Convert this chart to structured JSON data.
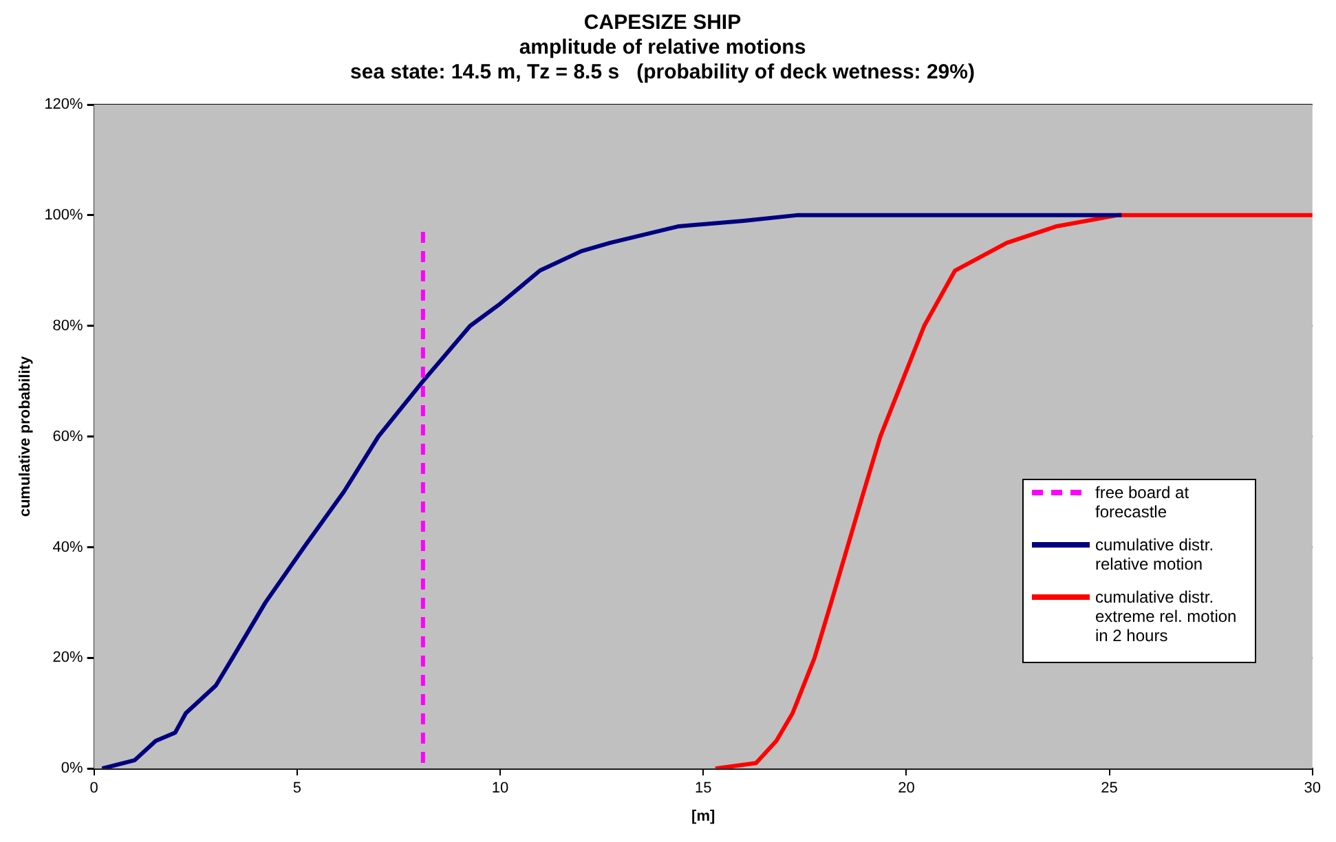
{
  "chart_data": {
    "type": "line",
    "title": "CAPESIZE SHIP\namplitude of relative motions\nsea state: 14.5 m, Tz = 8.5 s   (probability of deck wetness: 29%)",
    "xlabel": "[m]",
    "ylabel": "cumulative probability",
    "xlim": [
      0,
      30
    ],
    "xticks": [
      0,
      5,
      10,
      15,
      20,
      25,
      30
    ],
    "ylim": [
      0,
      120
    ],
    "yticks": [
      {
        "value": 0,
        "label": "0%"
      },
      {
        "value": 20,
        "label": "20%"
      },
      {
        "value": 40,
        "label": "40%"
      },
      {
        "value": 60,
        "label": "60%"
      },
      {
        "value": 80,
        "label": "80%"
      },
      {
        "value": 100,
        "label": "100%"
      },
      {
        "value": 120,
        "label": "120%"
      }
    ],
    "grid": "y",
    "legend": "right",
    "marker": "none",
    "line_style": "solid",
    "series": [
      {
        "name": "free board at forecastle",
        "color": "#ff00ff",
        "line_style": "dashed",
        "x": [
          8.1,
          8.1
        ],
        "values": [
          97,
          0
        ]
      },
      {
        "name": "cumulative distr. relative motion",
        "color": "#000080",
        "x": [
          0.2,
          1,
          1.52,
          2,
          2.26,
          3,
          3.41,
          4.22,
          5.17,
          6.15,
          7,
          8.1,
          9.26,
          10,
          10.98,
          12,
          12.7,
          14.4,
          16,
          17.3,
          25.3
        ],
        "values": [
          0,
          1.5,
          5,
          6.5,
          10,
          15,
          20,
          30,
          40,
          50,
          60,
          70,
          80,
          84,
          90,
          93.5,
          95,
          98,
          99,
          100,
          100
        ]
      },
      {
        "name": "cumulative distr. extreme rel. motion in 2 hours",
        "color": "#ff0000",
        "x": [
          15.3,
          16.3,
          16.8,
          17.2,
          17.74,
          18.15,
          18.55,
          18.95,
          19.36,
          19.9,
          20.44,
          21.2,
          22.47,
          23.7,
          25.2,
          30
        ],
        "values": [
          0,
          1,
          5,
          10,
          20,
          30,
          40,
          50,
          60,
          70,
          80,
          90,
          95,
          98,
          100,
          100
        ]
      }
    ]
  }
}
